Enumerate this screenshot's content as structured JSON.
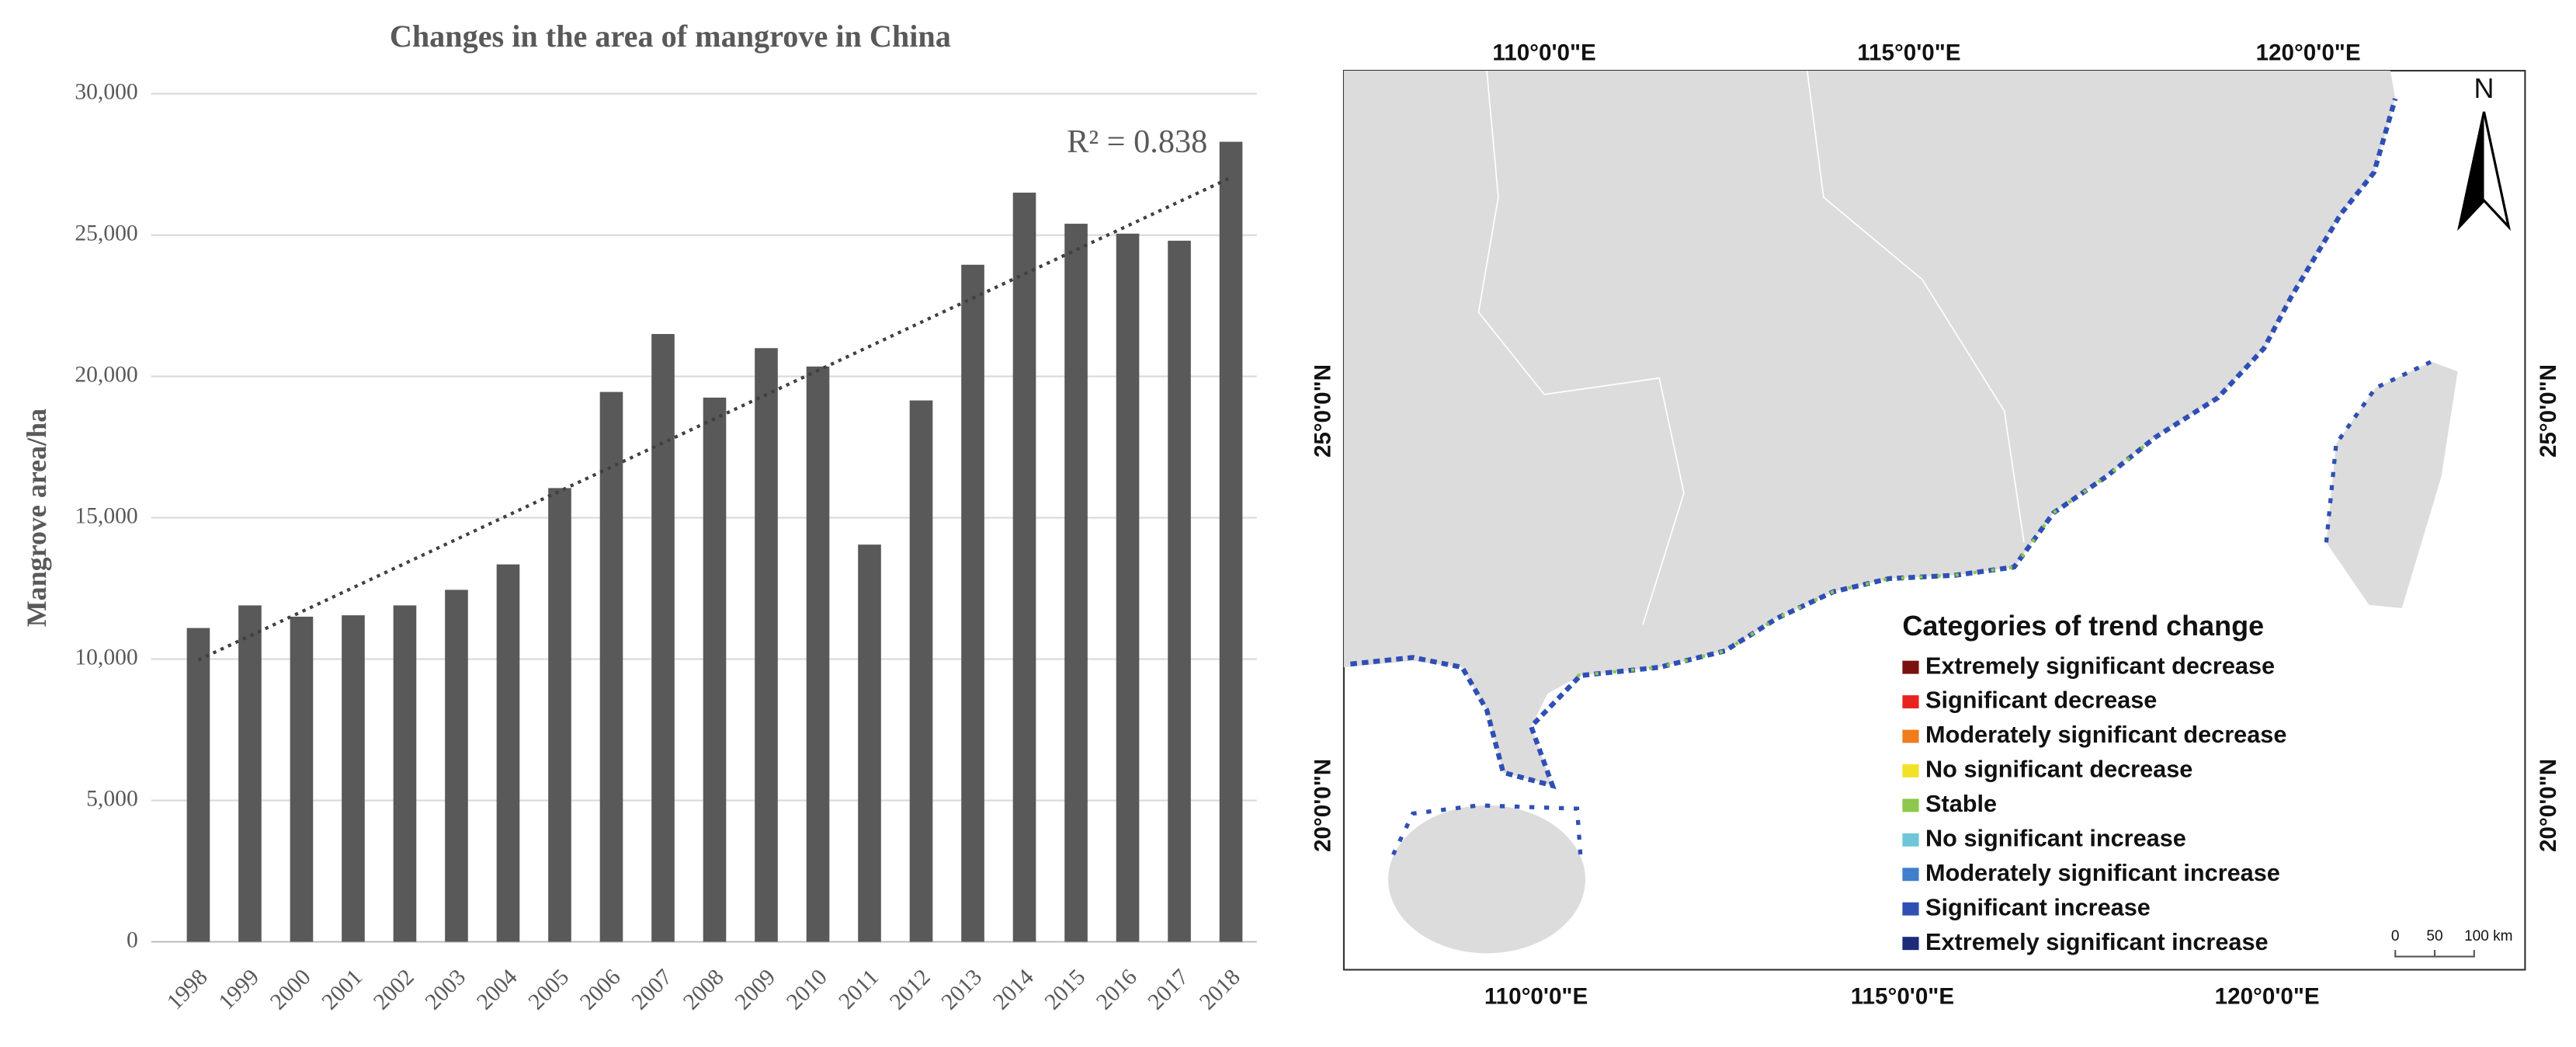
{
  "chart_data": {
    "type": "bar",
    "title": "Changes in the area of mangrove in China",
    "y_label": "Mangrove area/ha",
    "annotation": "R² = 0.838",
    "categories": [
      "1998",
      "1999",
      "2000",
      "2001",
      "2002",
      "2003",
      "2004",
      "2005",
      "2006",
      "2007",
      "2008",
      "2009",
      "2010",
      "2011",
      "2012",
      "2013",
      "2014",
      "2015",
      "2016",
      "2017",
      "2018"
    ],
    "values": [
      11100,
      11900,
      11500,
      11550,
      11900,
      12450,
      13350,
      16050,
      19450,
      21500,
      19250,
      21000,
      20350,
      14050,
      19150,
      23950,
      26500,
      25400,
      25050,
      24800,
      28300
    ],
    "color": "#595959",
    "trendline": "linear",
    "ylim": [
      0,
      30000
    ],
    "yticks": [
      0,
      {
        "value": 5000,
        "label": "5,000"
      },
      {
        "value": 10000,
        "label": "10,000"
      },
      {
        "value": 15000,
        "label": "15,000"
      },
      {
        "value": 20000,
        "label": "20,000"
      },
      {
        "value": 25000,
        "label": "25,000"
      },
      {
        "value": 30000,
        "label": "30,000"
      }
    ],
    "grid": true
  },
  "map": {
    "top_labels": [
      "110°0'0\"E",
      "115°0'0\"E",
      "120°0'0\"E"
    ],
    "bottom_labels": [
      "110°0'0\"E",
      "115°0'0\"E",
      "120°0'0\"E"
    ],
    "left_labels": [
      "25°0'0\"N",
      "20°0'0\"N"
    ],
    "right_labels": [
      "25°0'0\"N",
      "20°0'0\"N"
    ],
    "north": "N",
    "legend": {
      "title": "Categories of trend change",
      "items": [
        {
          "label": "Extremely significant decrease",
          "color": "#7b1010"
        },
        {
          "label": "Significant decrease",
          "color": "#e8231f"
        },
        {
          "label": "Moderately significant decrease",
          "color": "#f07c1c"
        },
        {
          "label": "No significant decrease",
          "color": "#f2e227"
        },
        {
          "label": "Stable",
          "color": "#8cc84b"
        },
        {
          "label": "No significant increase",
          "color": "#6fc6d8"
        },
        {
          "label": "Moderately significant increase",
          "color": "#3f7fcc"
        },
        {
          "label": "Significant increase",
          "color": "#2f4fb5"
        },
        {
          "label": "Extremely significant increase",
          "color": "#1c2b7a"
        }
      ]
    },
    "scale": [
      "0",
      "50",
      "100 km"
    ]
  }
}
